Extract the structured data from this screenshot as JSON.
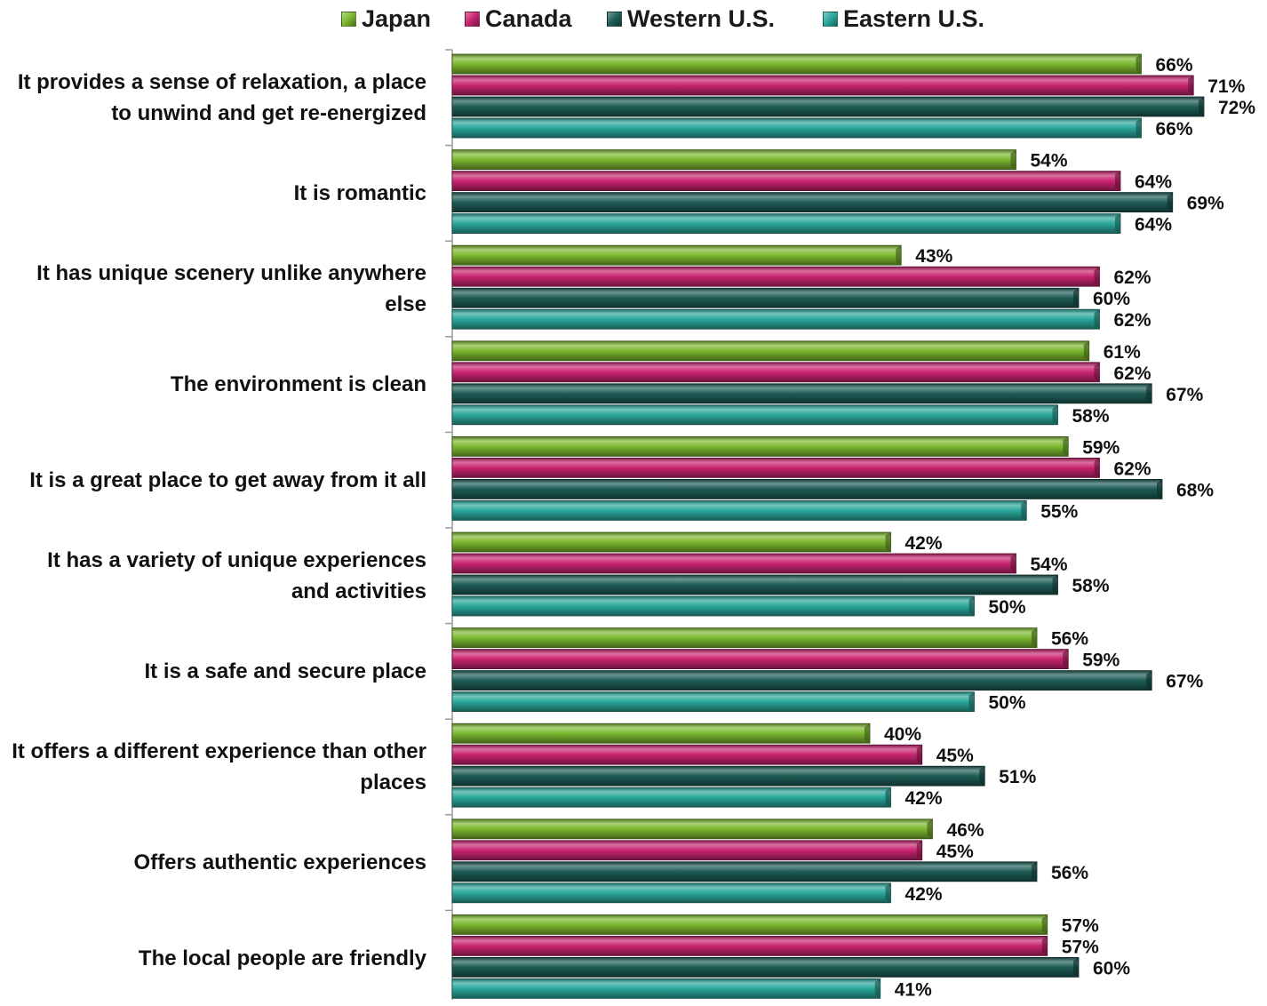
{
  "chart_data": {
    "type": "bar",
    "orientation": "horizontal",
    "categories": [
      "It provides a sense of relaxation, a place to unwind and get re-energized",
      "It is romantic",
      "It has unique scenery unlike anywhere else",
      "The environment is clean",
      "It is a great place to get away from it all",
      "It has a variety of unique experiences and activities",
      "It is a safe and secure place",
      "It offers a different experience than other places",
      "Offers authentic experiences",
      "The local people are friendly"
    ],
    "series": [
      {
        "name": "Japan",
        "color": "#7cb82f",
        "values": [
          66,
          54,
          43,
          61,
          59,
          42,
          56,
          40,
          46,
          57
        ]
      },
      {
        "name": "Canada",
        "color": "#c8246f",
        "values": [
          71,
          64,
          62,
          62,
          62,
          54,
          59,
          45,
          45,
          57
        ]
      },
      {
        "name": "Western U.S.",
        "color": "#1d5c55",
        "values": [
          72,
          69,
          60,
          67,
          68,
          58,
          67,
          51,
          56,
          60
        ]
      },
      {
        "name": "Eastern U.S.",
        "color": "#2aa89b",
        "values": [
          66,
          64,
          62,
          58,
          55,
          50,
          50,
          42,
          42,
          41
        ]
      }
    ],
    "value_suffix": "%",
    "xlim": [
      0,
      100
    ],
    "legend_position": "top",
    "grid": false
  }
}
